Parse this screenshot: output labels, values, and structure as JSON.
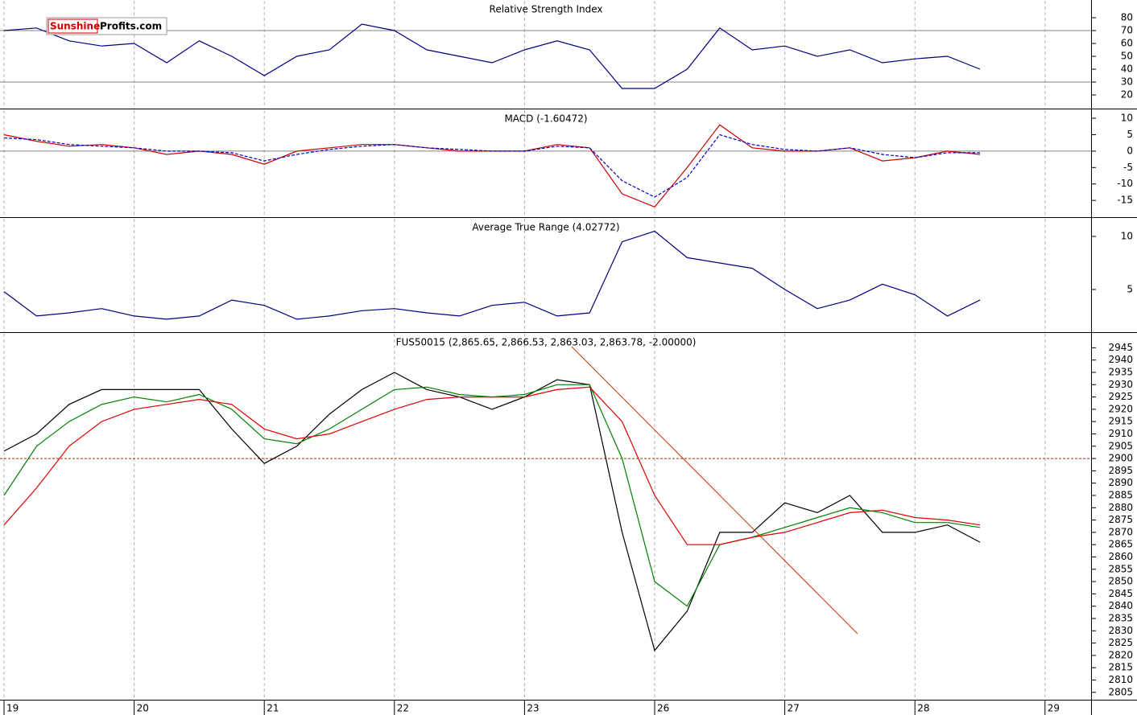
{
  "logo": {
    "brand": "Sunshine",
    "domain": "Profits.com"
  },
  "chart_data": [
    {
      "type": "line",
      "title": "Relative Strength Index",
      "ylim": [
        9.4,
        93.75
      ],
      "yticks": [
        20,
        30,
        40,
        50,
        60,
        70,
        80
      ],
      "reference_lines": [
        30,
        70
      ],
      "reference_color": "#808080",
      "series": [
        {
          "color": "#000080",
          "values": [
            70,
            72,
            62,
            58,
            60,
            45,
            62,
            50,
            35,
            50,
            55,
            75,
            70,
            55,
            50,
            45,
            55,
            62,
            55,
            25,
            25,
            40,
            72,
            55,
            58,
            50,
            55,
            45,
            48,
            50,
            40,
            null,
            null
          ]
        }
      ]
    },
    {
      "type": "line",
      "title": "MACD (-1.60472)",
      "ylim": [
        -20.1,
        12.7
      ],
      "yticks": [
        -15,
        -10,
        -5,
        0,
        5,
        10
      ],
      "reference_lines": [
        0
      ],
      "reference_color": "#808080",
      "series": [
        {
          "color": "#cc0000",
          "values": [
            5,
            3,
            1.5,
            2,
            1,
            -1,
            0,
            -1,
            -4,
            0,
            1,
            2,
            2,
            1,
            0,
            0,
            0,
            2,
            1,
            -13,
            -17,
            -5,
            8,
            1,
            0,
            0,
            1,
            -3,
            -2,
            0,
            -1,
            null,
            null
          ]
        },
        {
          "color": "#0000cc",
          "dashed": true,
          "values": [
            4,
            3.5,
            2,
            1.5,
            1,
            0,
            0,
            -0.5,
            -3,
            -1,
            0.5,
            1.5,
            2,
            1,
            0.5,
            0,
            0,
            1.5,
            1,
            -9,
            -14,
            -8,
            5,
            2,
            0.5,
            0,
            1,
            -1,
            -2,
            -0.5,
            -0.5,
            null,
            null
          ]
        }
      ]
    },
    {
      "type": "line",
      "title": "Average True Range (4.02772)",
      "ylim": [
        0.98,
        11.74
      ],
      "yticks": [
        5,
        10
      ],
      "series": [
        {
          "color": "#000080",
          "values": [
            4.8,
            2.5,
            2.8,
            3.2,
            2.5,
            2.2,
            2.5,
            4.0,
            3.5,
            2.2,
            2.5,
            3.0,
            3.2,
            2.8,
            2.5,
            3.5,
            3.8,
            2.5,
            2.8,
            9.5,
            10.5,
            8.0,
            7.5,
            7.0,
            5.0,
            3.2,
            4.0,
            5.5,
            4.5,
            2.5,
            4.0,
            null,
            null
          ]
        }
      ]
    },
    {
      "type": "line",
      "title": "FUS50015 (2,865.65, 2,866.53, 2,863.03, 2,863.78, -2.00000)",
      "ylim": [
        2802,
        2951
      ],
      "yticks": [
        2805,
        2810,
        2815,
        2820,
        2825,
        2830,
        2835,
        2840,
        2845,
        2850,
        2855,
        2860,
        2865,
        2870,
        2875,
        2880,
        2885,
        2890,
        2895,
        2900,
        2905,
        2910,
        2915,
        2920,
        2925,
        2930,
        2935,
        2940,
        2945
      ],
      "reference_lines": [
        2900
      ],
      "reference_color": "#993300",
      "grid": true,
      "categories": [
        "19",
        null,
        null,
        null,
        "20",
        null,
        null,
        null,
        "21",
        null,
        null,
        null,
        "22",
        null,
        null,
        null,
        "23",
        null,
        null,
        null,
        "26",
        null,
        null,
        null,
        "27",
        null,
        null,
        null,
        "28",
        null,
        null,
        null,
        "29"
      ],
      "series": [
        {
          "color": "#000000",
          "values": [
            2903,
            2910,
            2922,
            2928,
            2928,
            2928,
            2928,
            2912,
            2898,
            2905,
            2918,
            2928,
            2935,
            2928,
            2925,
            2920,
            2925,
            2932,
            2930,
            2870,
            2822,
            2838,
            2870,
            2870,
            2882,
            2878,
            2885,
            2870,
            2870,
            2873,
            2866,
            null,
            null
          ]
        },
        {
          "color": "#008000",
          "values": [
            2885,
            2905,
            2915,
            2922,
            2925,
            2923,
            2926,
            2920,
            2908,
            2906,
            2912,
            2920,
            2928,
            2929,
            2926,
            2925,
            2926,
            2930,
            2930,
            2900,
            2850,
            2840,
            2865,
            2868,
            2872,
            2876,
            2880,
            2878,
            2874,
            2874,
            2872,
            null,
            null
          ]
        },
        {
          "color": "#e00000",
          "values": [
            2873,
            2888,
            2905,
            2915,
            2920,
            2922,
            2924,
            2922,
            2912,
            2908,
            2910,
            2915,
            2920,
            2924,
            2925,
            2925,
            2925,
            2928,
            2929,
            2915,
            2885,
            2865,
            2865,
            2868,
            2870,
            2874,
            2878,
            2879,
            2876,
            2875,
            2873,
            null,
            null
          ]
        }
      ]
    }
  ]
}
